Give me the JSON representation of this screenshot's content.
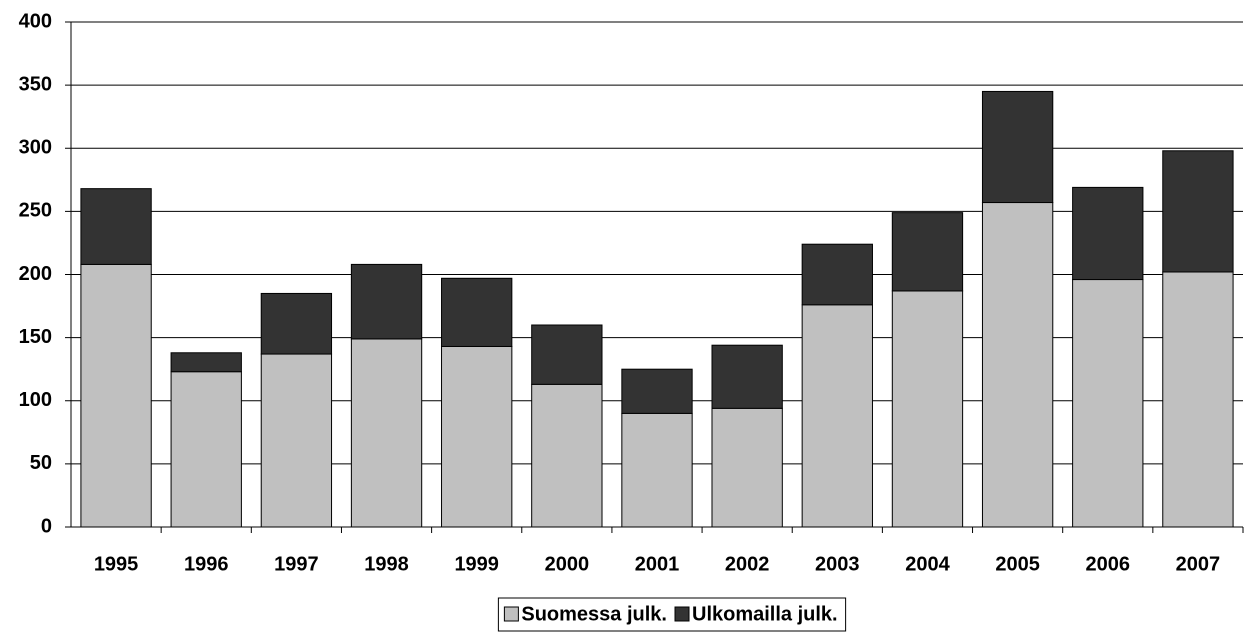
{
  "chart_data": {
    "type": "stacked_bar",
    "categories": [
      "1995",
      "1996",
      "1997",
      "1998",
      "1999",
      "2000",
      "2001",
      "2002",
      "2003",
      "2004",
      "2005",
      "2006",
      "2007"
    ],
    "series": [
      {
        "name": "Suomessa julk.",
        "color": "#c0c0c0",
        "values": [
          208,
          123,
          137,
          149,
          143,
          113,
          90,
          94,
          176,
          187,
          257,
          196,
          202
        ]
      },
      {
        "name": "Ulkomailla julk.",
        "color": "#333333",
        "values": [
          60,
          15,
          48,
          59,
          54,
          47,
          35,
          50,
          48,
          62,
          88,
          73,
          96
        ]
      }
    ],
    "ylim": [
      0,
      400
    ],
    "yticks": [
      0,
      50,
      100,
      150,
      200,
      250,
      300,
      350,
      400
    ],
    "grid": true,
    "legend": "bottom"
  }
}
